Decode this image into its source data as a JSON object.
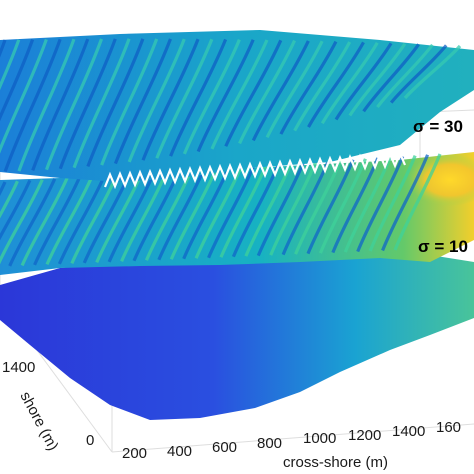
{
  "chart_data": {
    "type": "surface-3d",
    "title": "",
    "xlabel": "cross-shore (m)",
    "ylabel": "shore (m)",
    "x_ticks": [
      "200",
      "400",
      "600",
      "800",
      "1000",
      "1200",
      "1400",
      "160"
    ],
    "y_ticks": [
      "1400",
      "0"
    ],
    "xlim": [
      100,
      1650
    ],
    "layers": [
      {
        "name": "σ = 30",
        "label": "σ = 30",
        "colormap": "parula",
        "relative_level": 3
      },
      {
        "name": "σ = 10",
        "label": "σ = 10",
        "colormap": "parula",
        "relative_level": 2
      },
      {
        "name": "",
        "label": "",
        "colormap": "parula",
        "relative_level": 1
      }
    ],
    "grid": true,
    "colors": {
      "low": "#2a3bd6",
      "mid": "#17b5c8",
      "high": "#f6d32a",
      "highlight_line": "#ffffff"
    }
  }
}
